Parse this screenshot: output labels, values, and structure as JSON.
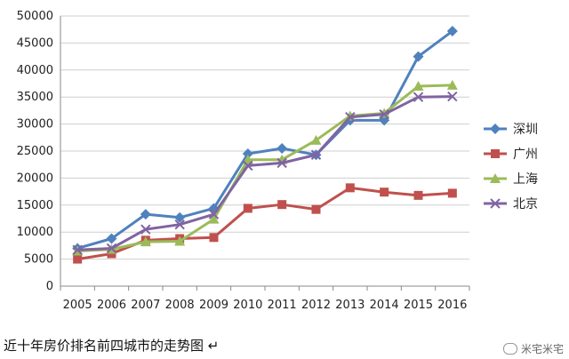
{
  "chart_data": {
    "type": "line",
    "title": "",
    "xlabel": "",
    "ylabel": "",
    "x": [
      "2005",
      "2006",
      "2007",
      "2008",
      "2009",
      "2010",
      "2011",
      "2012",
      "2013",
      "2014",
      "2015",
      "2016"
    ],
    "ylim": [
      0,
      50000
    ],
    "yticks": [
      0,
      5000,
      10000,
      15000,
      20000,
      25000,
      30000,
      35000,
      40000,
      45000,
      50000
    ],
    "grid": "horizontal",
    "legend_position": "right",
    "series": [
      {
        "name": "深圳",
        "color": "#4f81bd",
        "marker": "diamond",
        "values": [
          7000,
          8800,
          13300,
          12700,
          14400,
          24500,
          25500,
          24300,
          30700,
          30700,
          42500,
          47200
        ]
      },
      {
        "name": "广州",
        "color": "#c0504d",
        "marker": "square",
        "values": [
          5000,
          6000,
          8500,
          8800,
          9000,
          14400,
          15100,
          14200,
          18200,
          17400,
          16800,
          17200
        ]
      },
      {
        "name": "上海",
        "color": "#9bbb59",
        "marker": "triangle",
        "values": [
          6500,
          6800,
          8200,
          8300,
          12400,
          23400,
          23400,
          27000,
          31500,
          32000,
          37000,
          37200
        ]
      },
      {
        "name": "北京",
        "color": "#8064a2",
        "marker": "x",
        "values": [
          6700,
          7000,
          10500,
          11400,
          13300,
          22300,
          22800,
          24300,
          31300,
          31800,
          35000,
          35100
        ]
      }
    ]
  },
  "caption": "近十年房价排名前四城市的走势图 ↵",
  "watermark": "米宅米宅"
}
